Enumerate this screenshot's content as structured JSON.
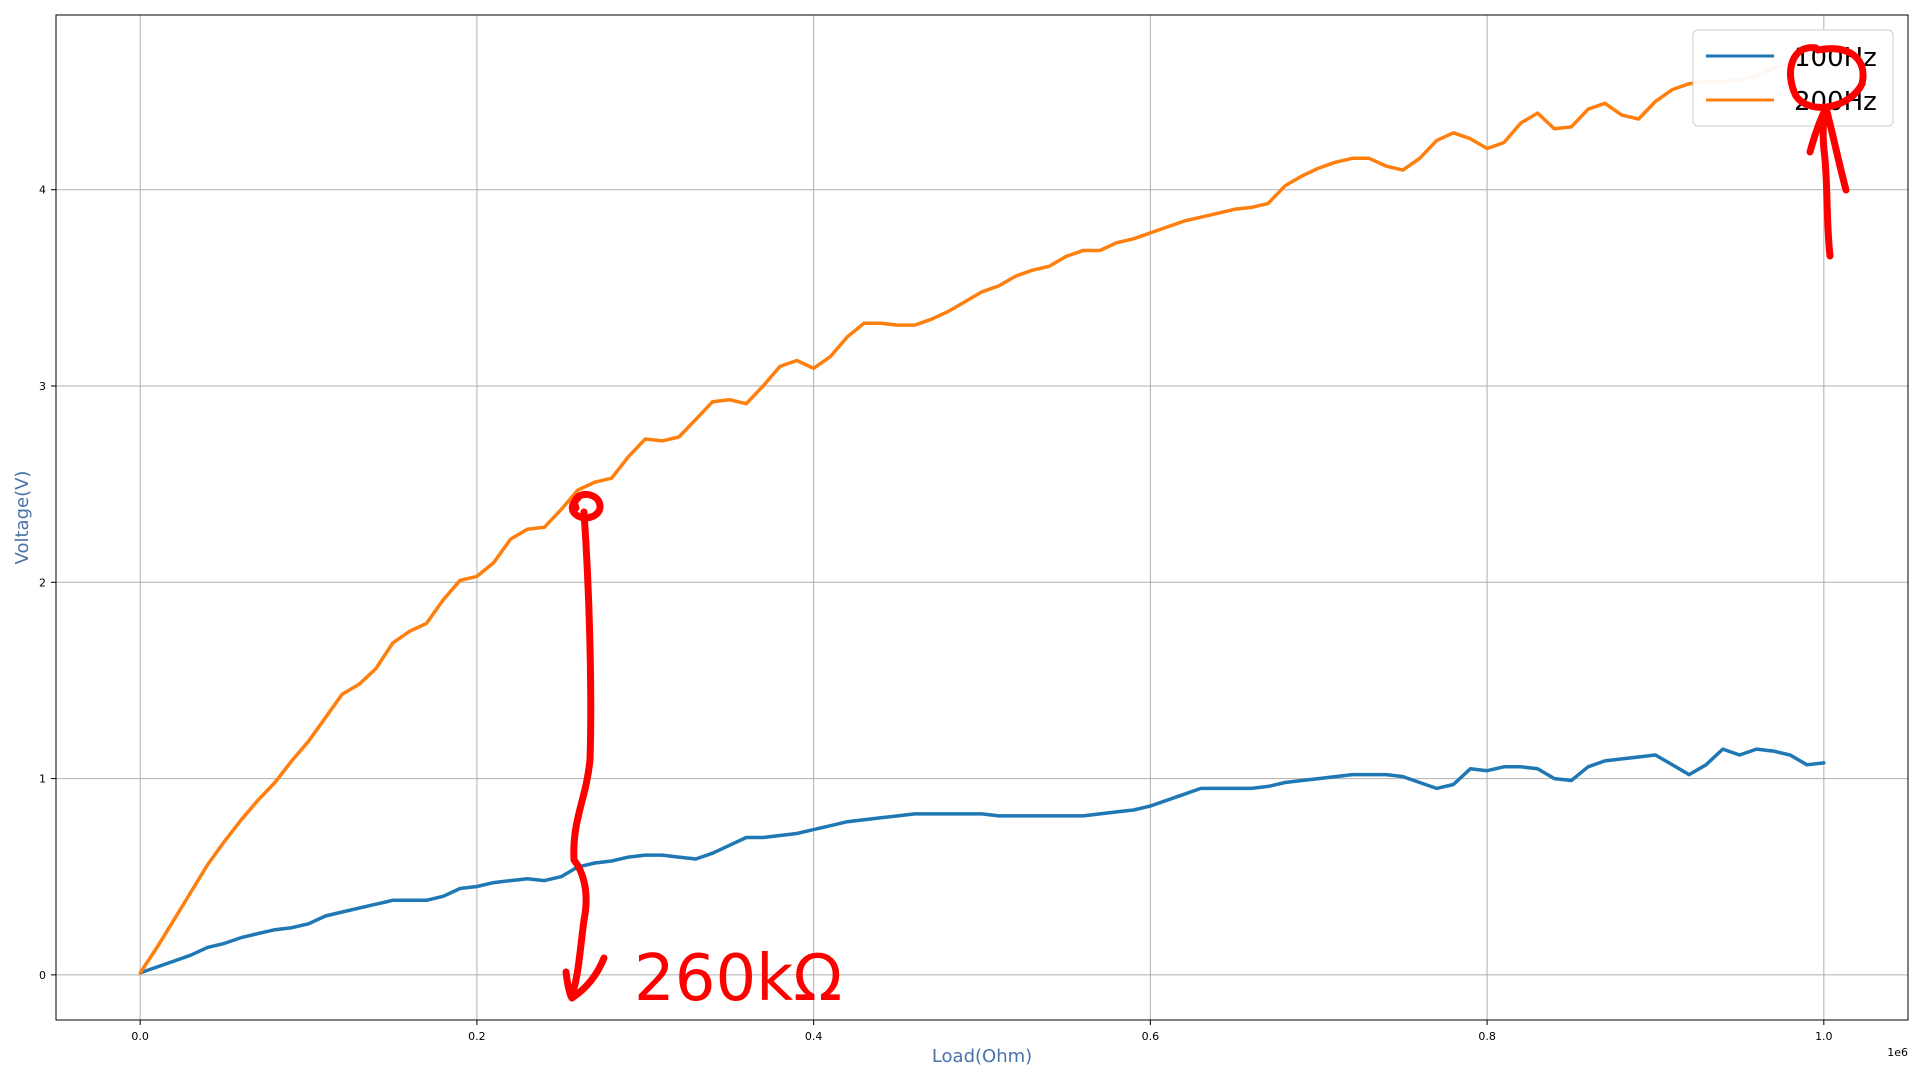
{
  "chart_data": {
    "type": "line",
    "title": "",
    "xlabel": "Load(Ohm)",
    "ylabel": "Voltage(V)",
    "x_offset_label": "1e6",
    "xlim": [
      -0.05,
      1.05
    ],
    "ylim": [
      -0.23,
      4.89
    ],
    "xticks": [
      0.0,
      0.2,
      0.4,
      0.6,
      0.8,
      1.0
    ],
    "xtick_labels": [
      "0.0",
      "0.2",
      "0.4",
      "0.6",
      "0.8",
      "1.0"
    ],
    "yticks": [
      0,
      1,
      2,
      3,
      4
    ],
    "ytick_labels": [
      "0",
      "1",
      "2",
      "3",
      "4"
    ],
    "grid": true,
    "legend_position": "top-right",
    "series": [
      {
        "name": "100Hz",
        "color": "#1f77b4",
        "x": [
          0.0,
          0.01,
          0.02,
          0.03,
          0.04,
          0.05,
          0.06,
          0.07,
          0.08,
          0.09,
          0.1,
          0.11,
          0.12,
          0.13,
          0.14,
          0.15,
          0.16,
          0.17,
          0.18,
          0.19,
          0.2,
          0.21,
          0.22,
          0.23,
          0.24,
          0.25,
          0.26,
          0.27,
          0.28,
          0.29,
          0.3,
          0.31,
          0.32,
          0.33,
          0.34,
          0.35,
          0.36,
          0.37,
          0.38,
          0.39,
          0.4,
          0.41,
          0.42,
          0.43,
          0.44,
          0.45,
          0.46,
          0.47,
          0.48,
          0.49,
          0.5,
          0.51,
          0.52,
          0.53,
          0.54,
          0.55,
          0.56,
          0.57,
          0.58,
          0.59,
          0.6,
          0.61,
          0.62,
          0.63,
          0.64,
          0.65,
          0.66,
          0.67,
          0.68,
          0.69,
          0.7,
          0.71,
          0.72,
          0.73,
          0.74,
          0.75,
          0.76,
          0.77,
          0.78,
          0.79,
          0.8,
          0.81,
          0.82,
          0.83,
          0.84,
          0.85,
          0.86,
          0.87,
          0.88,
          0.89,
          0.9,
          0.91,
          0.92,
          0.93,
          0.94,
          0.95,
          0.96,
          0.97,
          0.98,
          0.99,
          1.0
        ],
        "y": [
          0.01,
          0.04,
          0.07,
          0.1,
          0.14,
          0.16,
          0.19,
          0.21,
          0.23,
          0.24,
          0.26,
          0.3,
          0.32,
          0.34,
          0.36,
          0.38,
          0.38,
          0.38,
          0.4,
          0.44,
          0.45,
          0.47,
          0.48,
          0.49,
          0.48,
          0.5,
          0.55,
          0.57,
          0.58,
          0.6,
          0.61,
          0.61,
          0.6,
          0.59,
          0.62,
          0.66,
          0.7,
          0.7,
          0.71,
          0.72,
          0.74,
          0.76,
          0.78,
          0.79,
          0.8,
          0.81,
          0.82,
          0.82,
          0.82,
          0.82,
          0.82,
          0.81,
          0.81,
          0.81,
          0.81,
          0.81,
          0.81,
          0.82,
          0.83,
          0.84,
          0.86,
          0.89,
          0.92,
          0.95,
          0.95,
          0.95,
          0.95,
          0.96,
          0.98,
          0.99,
          1.0,
          1.01,
          1.02,
          1.02,
          1.02,
          1.01,
          0.98,
          0.95,
          0.97,
          1.05,
          1.04,
          1.06,
          1.06,
          1.05,
          1.0,
          0.99,
          1.06,
          1.09,
          1.1,
          1.11,
          1.12,
          1.07,
          1.02,
          1.07,
          1.15,
          1.12,
          1.15,
          1.14,
          1.12,
          1.07,
          1.08
        ]
      },
      {
        "name": "200Hz",
        "color": "#ff7f0e",
        "x": [
          0.0,
          0.01,
          0.02,
          0.03,
          0.04,
          0.05,
          0.06,
          0.07,
          0.08,
          0.09,
          0.1,
          0.11,
          0.12,
          0.13,
          0.14,
          0.15,
          0.16,
          0.17,
          0.18,
          0.19,
          0.2,
          0.21,
          0.22,
          0.23,
          0.24,
          0.25,
          0.26,
          0.27,
          0.28,
          0.29,
          0.3,
          0.31,
          0.32,
          0.33,
          0.34,
          0.35,
          0.36,
          0.37,
          0.38,
          0.39,
          0.4,
          0.41,
          0.42,
          0.43,
          0.44,
          0.45,
          0.46,
          0.47,
          0.48,
          0.49,
          0.5,
          0.51,
          0.52,
          0.53,
          0.54,
          0.55,
          0.56,
          0.57,
          0.58,
          0.59,
          0.6,
          0.61,
          0.62,
          0.63,
          0.64,
          0.65,
          0.66,
          0.67,
          0.68,
          0.69,
          0.7,
          0.71,
          0.72,
          0.73,
          0.74,
          0.75,
          0.76,
          0.77,
          0.78,
          0.79,
          0.8,
          0.81,
          0.82,
          0.83,
          0.84,
          0.85,
          0.86,
          0.87,
          0.88,
          0.89,
          0.9,
          0.91,
          0.92,
          0.93,
          0.94,
          0.95,
          0.96,
          0.97,
          0.98,
          0.99,
          1.0
        ],
        "y": [
          0.01,
          0.14,
          0.28,
          0.42,
          0.56,
          0.68,
          0.79,
          0.89,
          0.98,
          1.09,
          1.19,
          1.31,
          1.43,
          1.48,
          1.56,
          1.69,
          1.75,
          1.79,
          1.91,
          2.01,
          2.03,
          2.1,
          2.22,
          2.27,
          2.28,
          2.37,
          2.47,
          2.51,
          2.53,
          2.64,
          2.73,
          2.72,
          2.74,
          2.83,
          2.92,
          2.93,
          2.91,
          3.0,
          3.1,
          3.13,
          3.09,
          3.15,
          3.25,
          3.32,
          3.32,
          3.31,
          3.31,
          3.34,
          3.38,
          3.43,
          3.48,
          3.51,
          3.56,
          3.59,
          3.61,
          3.66,
          3.69,
          3.69,
          3.73,
          3.75,
          3.78,
          3.81,
          3.84,
          3.86,
          3.88,
          3.9,
          3.91,
          3.93,
          4.02,
          4.07,
          4.11,
          4.14,
          4.16,
          4.16,
          4.12,
          4.1,
          4.16,
          4.25,
          4.29,
          4.26,
          4.21,
          4.24,
          4.34,
          4.39,
          4.31,
          4.32,
          4.41,
          4.44,
          4.38,
          4.36,
          4.45,
          4.51,
          4.54,
          4.55,
          4.55,
          4.56,
          4.58,
          4.62,
          4.64,
          4.66,
          4.68
        ]
      }
    ],
    "annotations": [
      {
        "type": "text",
        "text": "260kΩ",
        "color": "#ff0000"
      }
    ]
  }
}
